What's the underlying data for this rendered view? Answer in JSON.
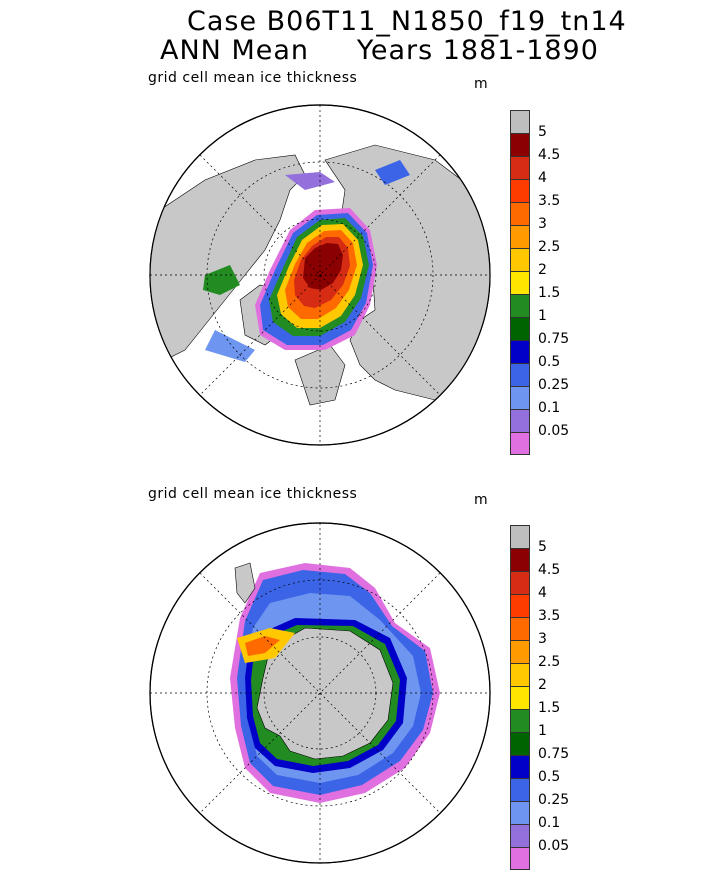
{
  "title": {
    "line1": "Case B06T11_N1850_f19_tn14",
    "line2": "ANN Mean     Years 1881-1890"
  },
  "panels": [
    {
      "id": "north",
      "label": "grid cell mean ice thickness",
      "unit": "m",
      "hemisphere": "Arctic"
    },
    {
      "id": "south",
      "label": "grid cell mean ice thickness",
      "unit": "m",
      "hemisphere": "Antarctic"
    }
  ],
  "colorbar": {
    "labels": [
      "5",
      "4.5",
      "4",
      "3.5",
      "3",
      "2.5",
      "2",
      "1.5",
      "1",
      "0.75",
      "0.5",
      "0.25",
      "0.1",
      "0.05"
    ],
    "colors": [
      "#bebebe",
      "#8b0000",
      "#d62c14",
      "#ff3c00",
      "#ff6a00",
      "#ff9a00",
      "#ffc800",
      "#ffe600",
      "#228b22",
      "#006400",
      "#0000c8",
      "#3c64e6",
      "#6e96f0",
      "#9370db",
      "#e070e0"
    ],
    "land_color": "#c8c8c8"
  }
}
